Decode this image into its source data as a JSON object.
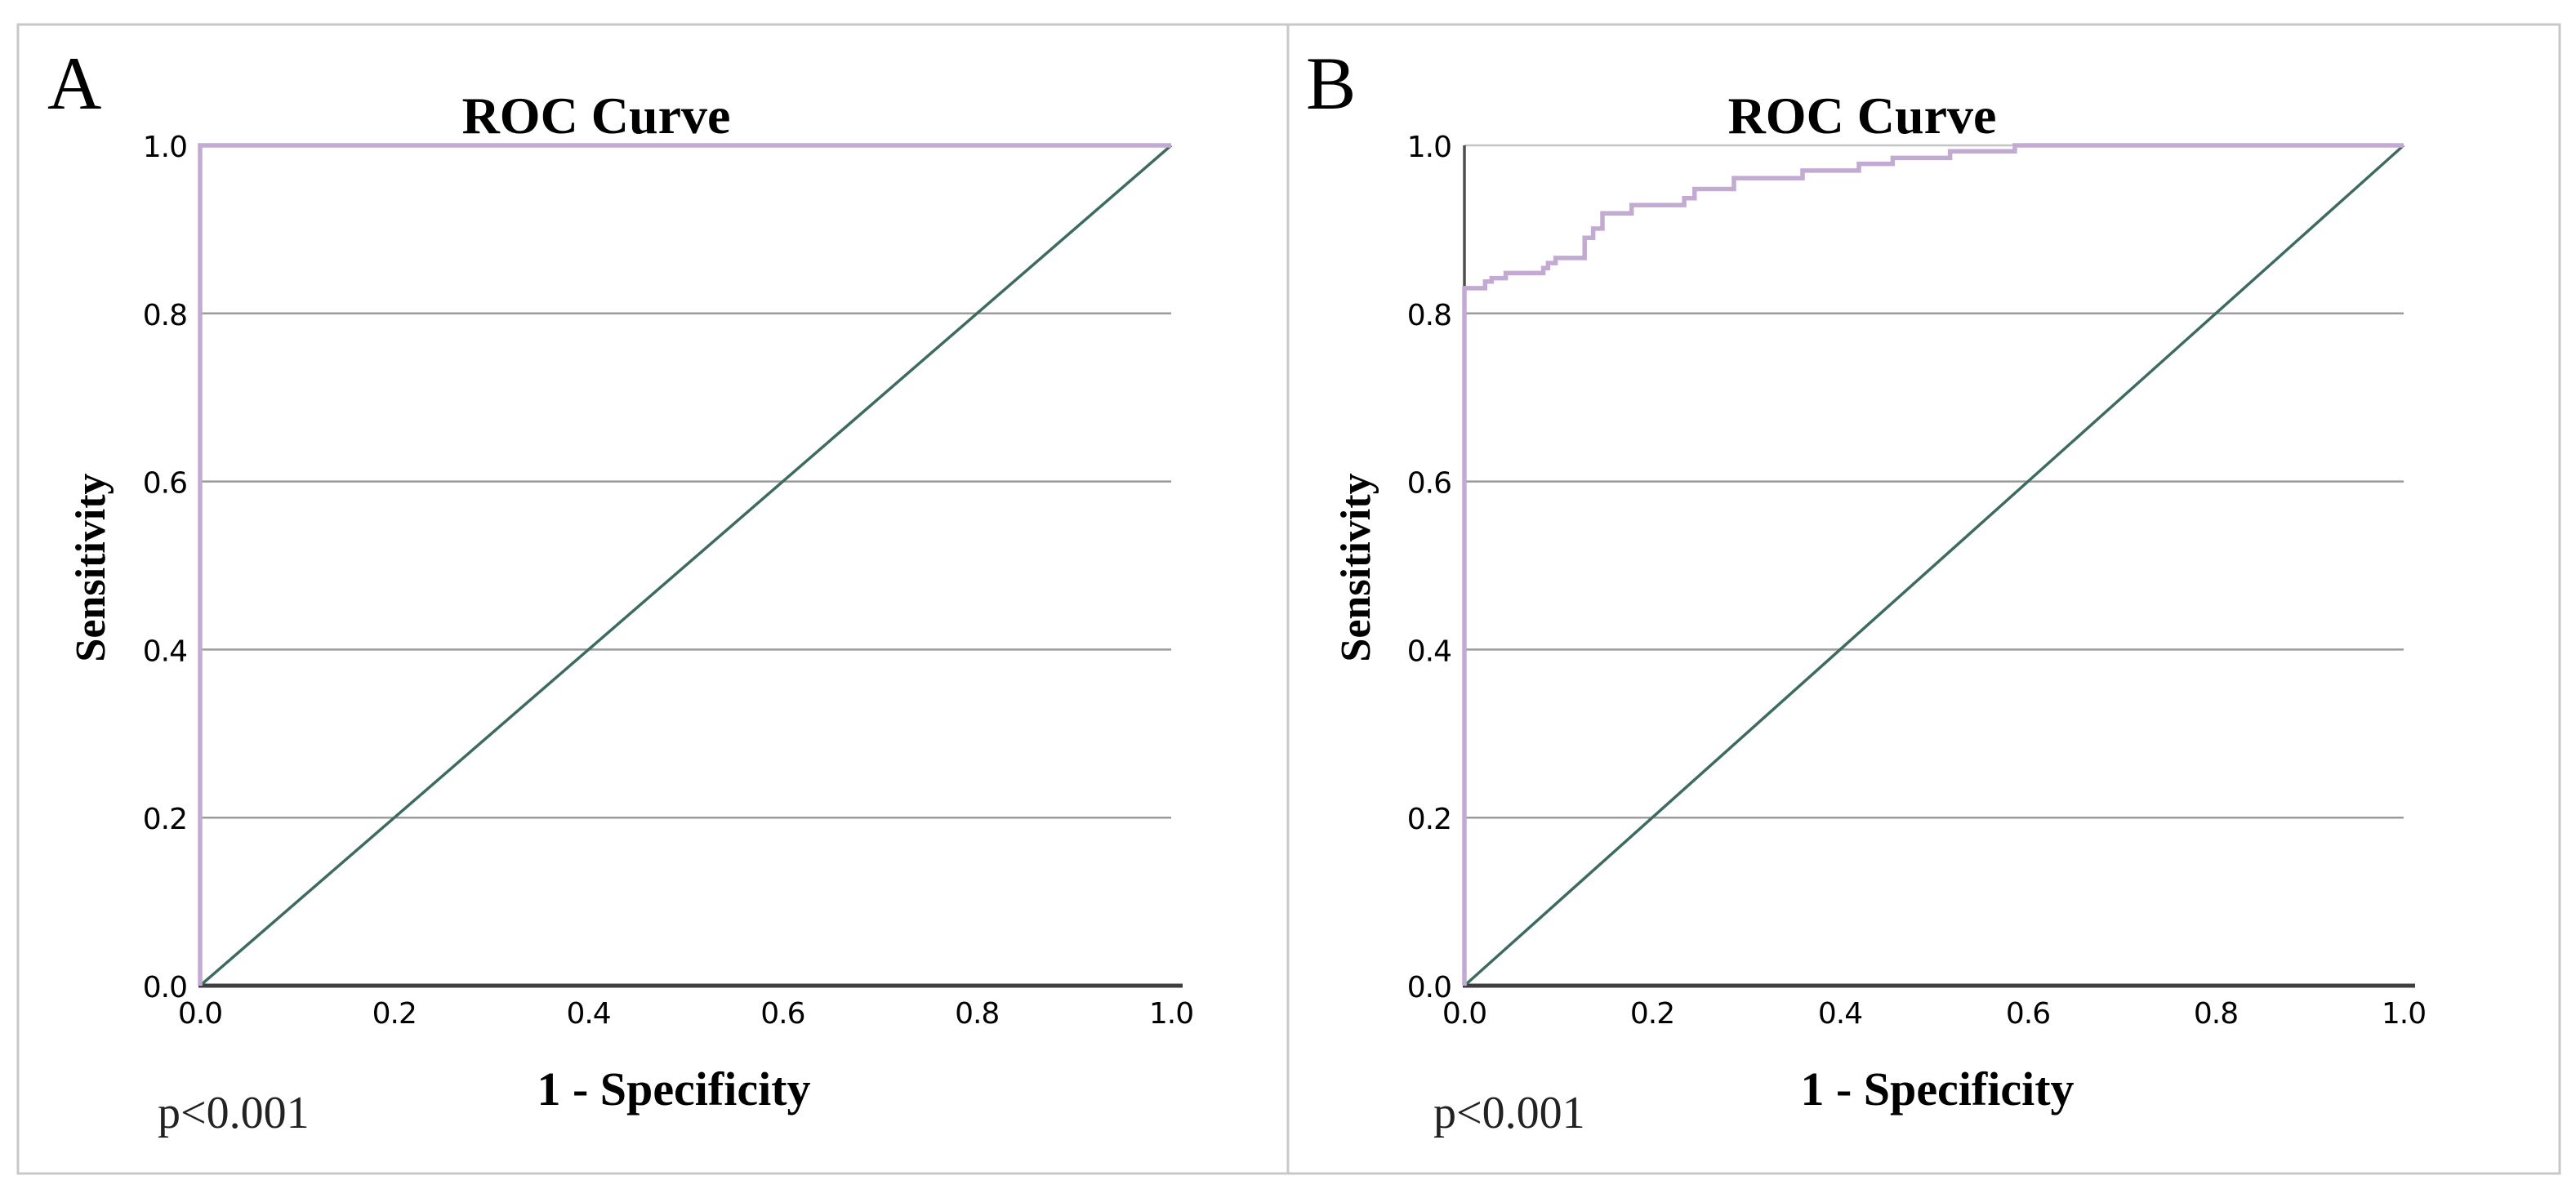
{
  "figure": {
    "description": "Two-panel ROC curve figure",
    "panel_count": 2
  },
  "colors": {
    "roc_curve": "#c3aad3",
    "reference_line": "#3d6b62",
    "gridline": "#9b9b9b",
    "gridline_top": "#c4c4c4",
    "x_axis": "#3e3e3e",
    "y_axis": "#4e4e4e",
    "border": "#c8c8c8",
    "text": "#000000",
    "background": "#ffffff"
  },
  "chart_data": [
    {
      "type": "line",
      "panel_label": "A",
      "title": "ROC Curve",
      "xlabel": "1 - Specificity",
      "ylabel": "Sensitivity",
      "annotation": "p<0.001",
      "x_ticks": [
        "0.0",
        "0.2",
        "0.4",
        "0.6",
        "0.8",
        "1.0"
      ],
      "y_ticks": [
        "0.0",
        "0.2",
        "0.4",
        "0.6",
        "0.8",
        "1.0"
      ],
      "xlim": [
        0,
        1
      ],
      "ylim": [
        0,
        1
      ],
      "grid": "horizontal-only",
      "legend": "none",
      "series": [
        {
          "name": "ROC curve",
          "color_key": "roc_curve",
          "width": 5.5,
          "points": [
            [
              0,
              0
            ],
            [
              0,
              1
            ],
            [
              1,
              1
            ]
          ]
        },
        {
          "name": "Reference diagonal",
          "color_key": "reference_line",
          "width": 3.5,
          "points": [
            [
              0,
              0
            ],
            [
              1,
              1
            ]
          ]
        }
      ]
    },
    {
      "type": "line",
      "panel_label": "B",
      "title": "ROC Curve",
      "xlabel": "1 - Specificity",
      "ylabel": "Sensitivity",
      "annotation": "p<0.001",
      "x_ticks": [
        "0.0",
        "0.2",
        "0.4",
        "0.6",
        "0.8",
        "1.0"
      ],
      "y_ticks": [
        "0.0",
        "0.2",
        "0.4",
        "0.6",
        "0.8",
        "1.0"
      ],
      "xlim": [
        0,
        1
      ],
      "ylim": [
        0,
        1
      ],
      "grid": "horizontal-only",
      "legend": "none",
      "series": [
        {
          "name": "ROC curve",
          "color_key": "roc_curve",
          "width": 5.5,
          "points": [
            [
              0,
              0
            ],
            [
              0,
              0.83
            ],
            [
              0.022,
              0.83
            ],
            [
              0.022,
              0.838
            ],
            [
              0.029,
              0.838
            ],
            [
              0.029,
              0.842
            ],
            [
              0.044,
              0.842
            ],
            [
              0.044,
              0.848
            ],
            [
              0.084,
              0.848
            ],
            [
              0.084,
              0.854
            ],
            [
              0.089,
              0.854
            ],
            [
              0.089,
              0.86
            ],
            [
              0.097,
              0.86
            ],
            [
              0.097,
              0.866
            ],
            [
              0.128,
              0.866
            ],
            [
              0.128,
              0.89
            ],
            [
              0.137,
              0.89
            ],
            [
              0.137,
              0.901
            ],
            [
              0.147,
              0.901
            ],
            [
              0.147,
              0.919
            ],
            [
              0.178,
              0.919
            ],
            [
              0.178,
              0.929
            ],
            [
              0.234,
              0.929
            ],
            [
              0.234,
              0.937
            ],
            [
              0.245,
              0.937
            ],
            [
              0.245,
              0.948
            ],
            [
              0.287,
              0.948
            ],
            [
              0.287,
              0.961
            ],
            [
              0.36,
              0.961
            ],
            [
              0.36,
              0.97
            ],
            [
              0.42,
              0.97
            ],
            [
              0.42,
              0.978
            ],
            [
              0.456,
              0.978
            ],
            [
              0.456,
              0.985
            ],
            [
              0.517,
              0.985
            ],
            [
              0.517,
              0.993
            ],
            [
              0.586,
              0.993
            ],
            [
              0.586,
              1
            ],
            [
              1,
              1
            ]
          ]
        },
        {
          "name": "Reference diagonal",
          "color_key": "reference_line",
          "width": 3.5,
          "points": [
            [
              0,
              0
            ],
            [
              1,
              1
            ]
          ]
        }
      ]
    }
  ]
}
